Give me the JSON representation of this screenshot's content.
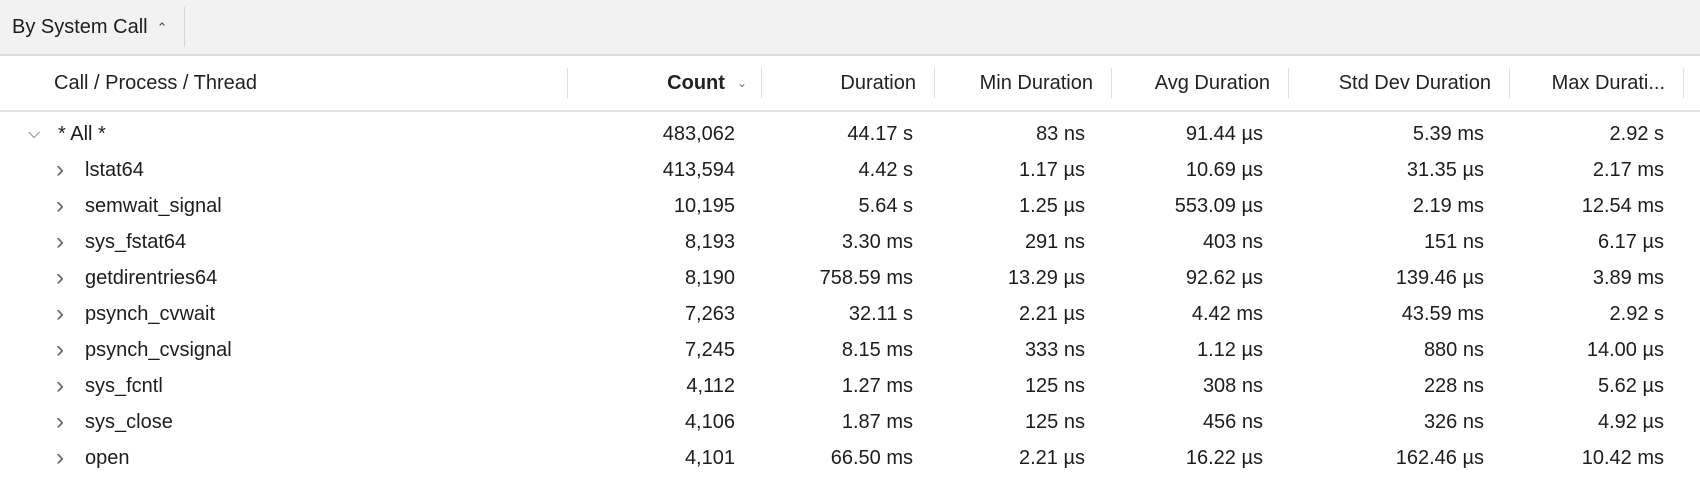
{
  "toolbar": {
    "scope_label": "By System Call",
    "scope_icon": "up-down-chevron-icon"
  },
  "columns": [
    {
      "label": "Call / Process / Thread"
    },
    {
      "label": "Count",
      "sorted": "descending"
    },
    {
      "label": "Duration"
    },
    {
      "label": "Min Duration"
    },
    {
      "label": "Avg Duration"
    },
    {
      "label": "Std Dev Duration"
    },
    {
      "label": "Max Durati..."
    }
  ],
  "rows": [
    {
      "name": "* All *",
      "expanded": true,
      "count": "483,062",
      "duration": "44.17 s",
      "min": "83 ns",
      "avg": "91.44 µs",
      "std": "5.39 ms",
      "max": "2.92 s"
    },
    {
      "name": "lstat64",
      "count": "413,594",
      "duration": "4.42 s",
      "min": "1.17 µs",
      "avg": "10.69 µs",
      "std": "31.35 µs",
      "max": "2.17 ms"
    },
    {
      "name": "semwait_signal",
      "count": "10,195",
      "duration": "5.64 s",
      "min": "1.25 µs",
      "avg": "553.09 µs",
      "std": "2.19 ms",
      "max": "12.54 ms"
    },
    {
      "name": "sys_fstat64",
      "count": "8,193",
      "duration": "3.30 ms",
      "min": "291 ns",
      "avg": "403 ns",
      "std": "151 ns",
      "max": "6.17 µs"
    },
    {
      "name": "getdirentries64",
      "count": "8,190",
      "duration": "758.59 ms",
      "min": "13.29 µs",
      "avg": "92.62 µs",
      "std": "139.46 µs",
      "max": "3.89 ms"
    },
    {
      "name": "psynch_cvwait",
      "count": "7,263",
      "duration": "32.11 s",
      "min": "2.21 µs",
      "avg": "4.42 ms",
      "std": "43.59 ms",
      "max": "2.92 s"
    },
    {
      "name": "psynch_cvsignal",
      "count": "7,245",
      "duration": "8.15 ms",
      "min": "333 ns",
      "avg": "1.12 µs",
      "std": "880 ns",
      "max": "14.00 µs"
    },
    {
      "name": "sys_fcntl",
      "count": "4,112",
      "duration": "1.27 ms",
      "min": "125 ns",
      "avg": "308 ns",
      "std": "228 ns",
      "max": "5.62 µs"
    },
    {
      "name": "sys_close",
      "count": "4,106",
      "duration": "1.87 ms",
      "min": "125 ns",
      "avg": "456 ns",
      "std": "326 ns",
      "max": "4.92 µs"
    },
    {
      "name": "open",
      "count": "4,101",
      "duration": "66.50 ms",
      "min": "2.21 µs",
      "avg": "16.22 µs",
      "std": "162.46 µs",
      "max": "10.42 ms"
    }
  ]
}
